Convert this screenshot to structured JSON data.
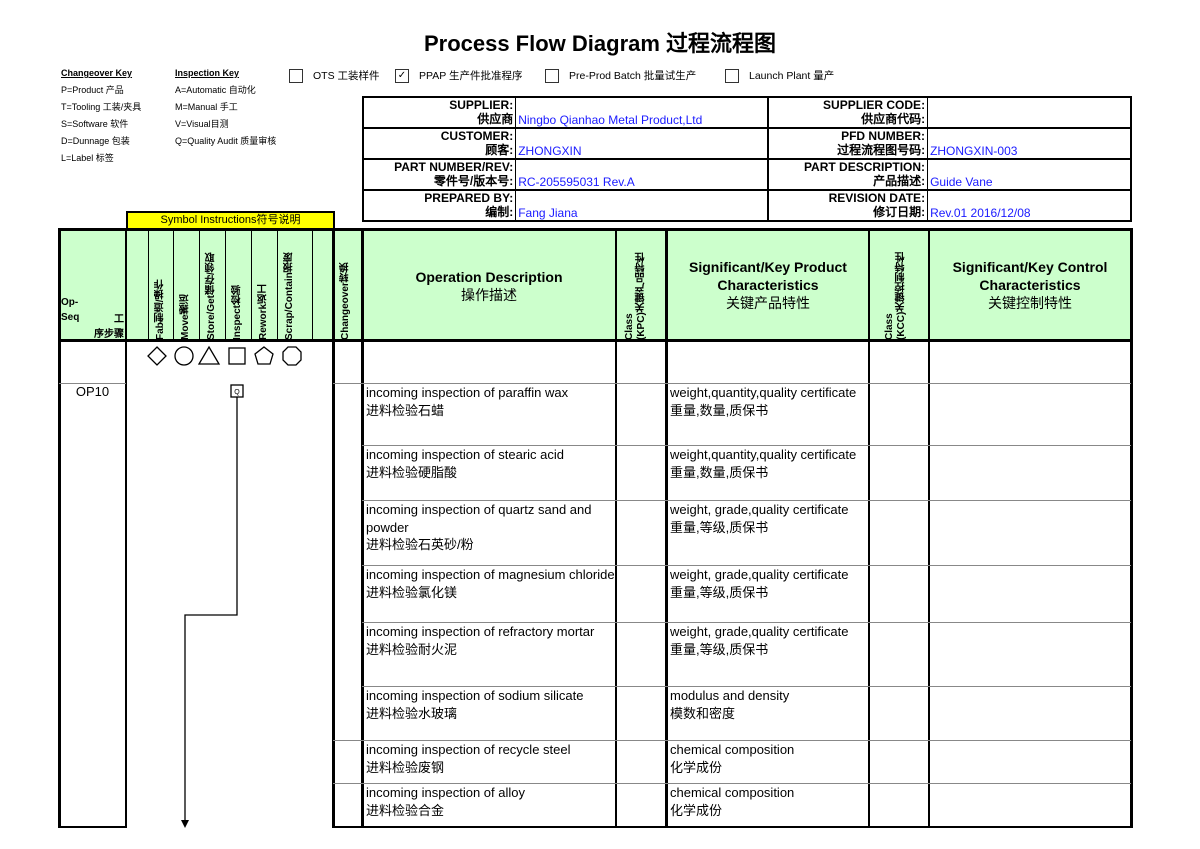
{
  "title": "Process Flow Diagram 过程流程图",
  "changeover_key": {
    "heading": "Changeover Key",
    "items": [
      "P=Product 产品",
      "T=Tooling 工装/夹具",
      "S=Software 软件",
      "D=Dunnage 包装",
      "L=Label 标签"
    ]
  },
  "inspection_key": {
    "heading": "Inspection Key",
    "items": [
      "A=Automatic 自动化",
      "M=Manual 手工",
      "V=Visual目测",
      "Q=Quality Audit 质量审核"
    ]
  },
  "phases": [
    {
      "label": "OTS 工装样件",
      "checked": false
    },
    {
      "label": "PPAP 生产件批准程序",
      "checked": true
    },
    {
      "label": "Pre-Prod Batch 批量试生产",
      "checked": false
    },
    {
      "label": "Launch Plant 量产",
      "checked": false
    }
  ],
  "check_mark": "✓",
  "header": {
    "supplier_label": "SUPPLIER:",
    "supplier_label_cn": "供应商",
    "supplier": "Ningbo Qianhao Metal Product,Ltd",
    "supplier_code_label": "SUPPLIER CODE:",
    "supplier_code_label_cn": "供应商代码:",
    "supplier_code": "",
    "customer_label": "CUSTOMER:",
    "customer_label_cn": "顾客:",
    "customer": "ZHONGXIN",
    "pfd_label": "PFD NUMBER:",
    "pfd_label_cn": "过程流程图号码:",
    "pfd": "ZHONGXIN-003",
    "part_no_label": "PART NUMBER/REV:",
    "part_no_label_cn": "零件号/版本号:",
    "part_no": "RC-205595031 Rev.A",
    "part_desc_label": "PART DESCRIPTION:",
    "part_desc_label_cn": "产品描述:",
    "part_desc": "Guide Vane",
    "prepared_label": "PREPARED BY:",
    "prepared_label_cn": "编制:",
    "prepared": "Fang Jiana",
    "rev_date_label": "REVISION DATE:",
    "rev_date_label_cn": "修订日期:",
    "rev_date": "Rev.01 2016/12/08"
  },
  "symbol_instructions": "Symbol Instructions符号说明",
  "columns": {
    "op_seq": "Op-\nSeq",
    "op_seq_cn": "工\n序步骤",
    "symbols": [
      "Fab制造/操作",
      "Move搬运",
      "Store/Get储存/领取",
      "Inspect检验",
      "Rework返工",
      "Scrap/Contain报废"
    ],
    "changeover": "Changeover转换",
    "op_desc": "Operation Description",
    "op_desc_cn": "操作描述",
    "kpc": "Class\n(KPC)关键产品特性",
    "product_char": "Significant/Key Product Characteristics",
    "product_char_cn": "关键产品特性",
    "kcc": "Class\n(KCC)关键控制特性",
    "control_char": "Significant/Key Control Characteristics",
    "control_char_cn": "关键控制特性"
  },
  "symbol_shapes": [
    "diamond",
    "circle",
    "triangle",
    "square",
    "pentagon",
    "octagon"
  ],
  "op_seq_value": "OP10",
  "inspect_box_label": "Q",
  "rows": [
    {
      "desc": "incoming inspection of paraffin wax",
      "desc_cn": "进料检验石蜡",
      "prod": "weight,quantity,quality certificate",
      "prod_cn": "重量,数量,质保书"
    },
    {
      "desc": "incoming inspection of stearic acid",
      "desc_cn": "进料检验硬脂酸",
      "prod": "weight,quantity,quality certificate",
      "prod_cn": "重量,数量,质保书"
    },
    {
      "desc": "incoming inspection of quartz sand and powder",
      "desc_cn": "进料检验石英砂/粉",
      "prod": "weight, grade,quality certificate",
      "prod_cn": "重量,等级,质保书"
    },
    {
      "desc": "incoming inspection of magnesium chloride",
      "desc_cn": "进料检验氯化镁",
      "prod": "weight, grade,quality certificate",
      "prod_cn": "重量,等级,质保书"
    },
    {
      "desc": "incoming inspection of refractory mortar",
      "desc_cn": "进料检验耐火泥",
      "prod": "weight, grade,quality certificate",
      "prod_cn": "重量,等级,质保书"
    },
    {
      "desc": "incoming inspection of sodium silicate",
      "desc_cn": "进料检验水玻璃",
      "prod": "modulus and density",
      "prod_cn": "模数和密度"
    },
    {
      "desc": "incoming inspection of recycle steel",
      "desc_cn": "进料检验废钢",
      "prod": "chemical composition",
      "prod_cn": "化学成份"
    },
    {
      "desc": "incoming inspection of alloy",
      "desc_cn": "进料检验合金",
      "prod": "chemical composition",
      "prod_cn": "化学成份"
    }
  ],
  "colors": {
    "header_green": "#ccffcc",
    "symbol_yellow": "#ffff00",
    "value_blue": "#1a1aff"
  }
}
